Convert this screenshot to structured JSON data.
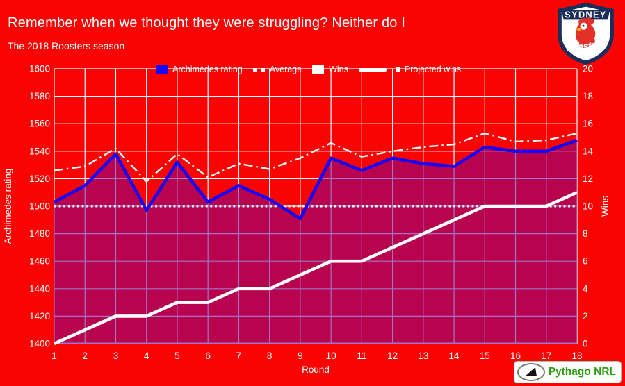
{
  "header": {
    "title": "Remember when we thought they were struggling? Neither do I",
    "subtitle": "The 2018 Roosters season"
  },
  "logos": {
    "roosters": {
      "top_text": "SYDNEY",
      "script_text": "Roosters"
    },
    "pythago": {
      "label": "Pythago NRL"
    }
  },
  "colors": {
    "background": "#fa0303",
    "line_blue": "#1807f2",
    "area_fill": "#b8034e",
    "grid_in_area": "#a273c8",
    "grid_white": "#ffffff",
    "text": "#ffffff",
    "pythago_green": "#2f9e12",
    "roosters_navy": "#1b2d5b",
    "roosters_red": "#e23128"
  },
  "chart_data": {
    "type": "line",
    "title": "The 2018 Roosters season",
    "xlabel": "Round",
    "x": [
      1,
      2,
      3,
      4,
      5,
      6,
      7,
      8,
      9,
      10,
      11,
      12,
      13,
      14,
      15,
      16,
      17,
      18
    ],
    "left_axis": {
      "label": "Archimedes rating",
      "min": 1400,
      "max": 1600,
      "step": 20
    },
    "right_axis": {
      "label": "Wins",
      "min": 0,
      "max": 20,
      "step": 2
    },
    "grid": true,
    "legend_position": "top",
    "series": [
      {
        "key": "rating",
        "name": "Archimedes rating",
        "axis": "left",
        "style": "solid-area",
        "values": [
          1503,
          1515,
          1538,
          1497,
          1532,
          1503,
          1515,
          1505,
          1491,
          1535,
          1526,
          1535,
          1531,
          1529,
          1543,
          1540,
          1540,
          1548
        ]
      },
      {
        "key": "average",
        "name": "Average",
        "axis": "left",
        "style": "dotted",
        "constant_value": 1500
      },
      {
        "key": "wins",
        "name": "Wins",
        "axis": "right",
        "style": "solid-thick",
        "values": [
          0,
          1,
          2,
          2,
          3,
          3,
          4,
          4,
          5,
          6,
          6,
          7,
          8,
          9,
          10,
          10,
          10,
          11
        ]
      },
      {
        "key": "projected",
        "name": "Projected wins",
        "axis": "right",
        "style": "dash-dot",
        "values": [
          12.6,
          12.9,
          14.2,
          11.8,
          13.8,
          12.1,
          13.1,
          12.7,
          13.5,
          14.6,
          13.6,
          14.0,
          14.3,
          14.5,
          15.3,
          14.7,
          14.8,
          15.3
        ]
      }
    ]
  }
}
